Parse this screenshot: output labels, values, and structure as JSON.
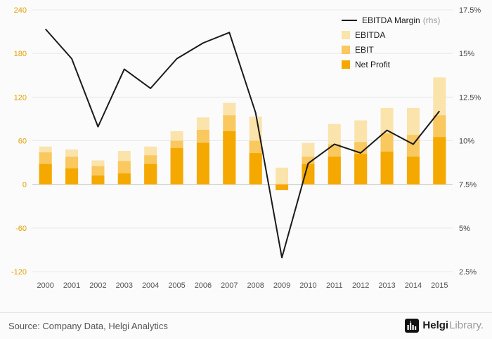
{
  "chart_data": {
    "type": "bar",
    "title": "",
    "categories": [
      "2000",
      "2001",
      "2002",
      "2003",
      "2004",
      "2005",
      "2006",
      "2007",
      "2008",
      "2009",
      "2010",
      "2011",
      "2012",
      "2013",
      "2014",
      "2015"
    ],
    "series": [
      {
        "name": "EBITDA",
        "type": "bar",
        "axis": "left",
        "color": "#FBE3AC",
        "values": [
          52,
          48,
          33,
          46,
          52,
          73,
          92,
          112,
          93,
          23,
          57,
          83,
          88,
          105,
          105,
          147
        ]
      },
      {
        "name": "EBIT",
        "type": "bar",
        "axis": "left",
        "color": "#F9C85F",
        "values": [
          44,
          38,
          25,
          32,
          40,
          60,
          75,
          95,
          60,
          -4,
          38,
          55,
          58,
          70,
          68,
          95
        ]
      },
      {
        "name": "Net Profit",
        "type": "bar",
        "axis": "left",
        "color": "#F5A800",
        "values": [
          28,
          22,
          12,
          15,
          28,
          50,
          57,
          73,
          43,
          -8,
          28,
          38,
          42,
          45,
          38,
          65
        ]
      },
      {
        "name": "EBITDA Margin",
        "type": "line",
        "axis": "right",
        "color": "#1a1a1a",
        "values": [
          16.4,
          14.7,
          10.8,
          14.1,
          13.0,
          14.7,
          15.6,
          16.2,
          11.6,
          3.3,
          8.7,
          9.8,
          9.3,
          10.6,
          9.8,
          11.7
        ]
      }
    ],
    "left_axis": {
      "min": -120,
      "max": 240,
      "ticks": [
        240,
        180,
        120,
        60,
        0,
        -60,
        -120
      ],
      "labels": [
        "240",
        "180",
        "120",
        "60",
        "0",
        "-60",
        "-120"
      ],
      "color": "#E2A000"
    },
    "right_axis": {
      "min": 2.5,
      "max": 17.5,
      "ticks": [
        17.5,
        15,
        12.5,
        10,
        7.5,
        5,
        2.5
      ],
      "labels": [
        "17.5%",
        "15%",
        "12.5%",
        "10%",
        "7.5%",
        "5%",
        "2.5%"
      ],
      "color": "#444444"
    },
    "grid": true,
    "legend_position": "top-right",
    "bar_overlay": true
  },
  "legend": {
    "rhs_suffix": "(rhs)"
  },
  "footer": {
    "source": "Source: Company Data, Helgi Analytics",
    "brand_bold": "Helgi",
    "brand_light": "Library."
  }
}
